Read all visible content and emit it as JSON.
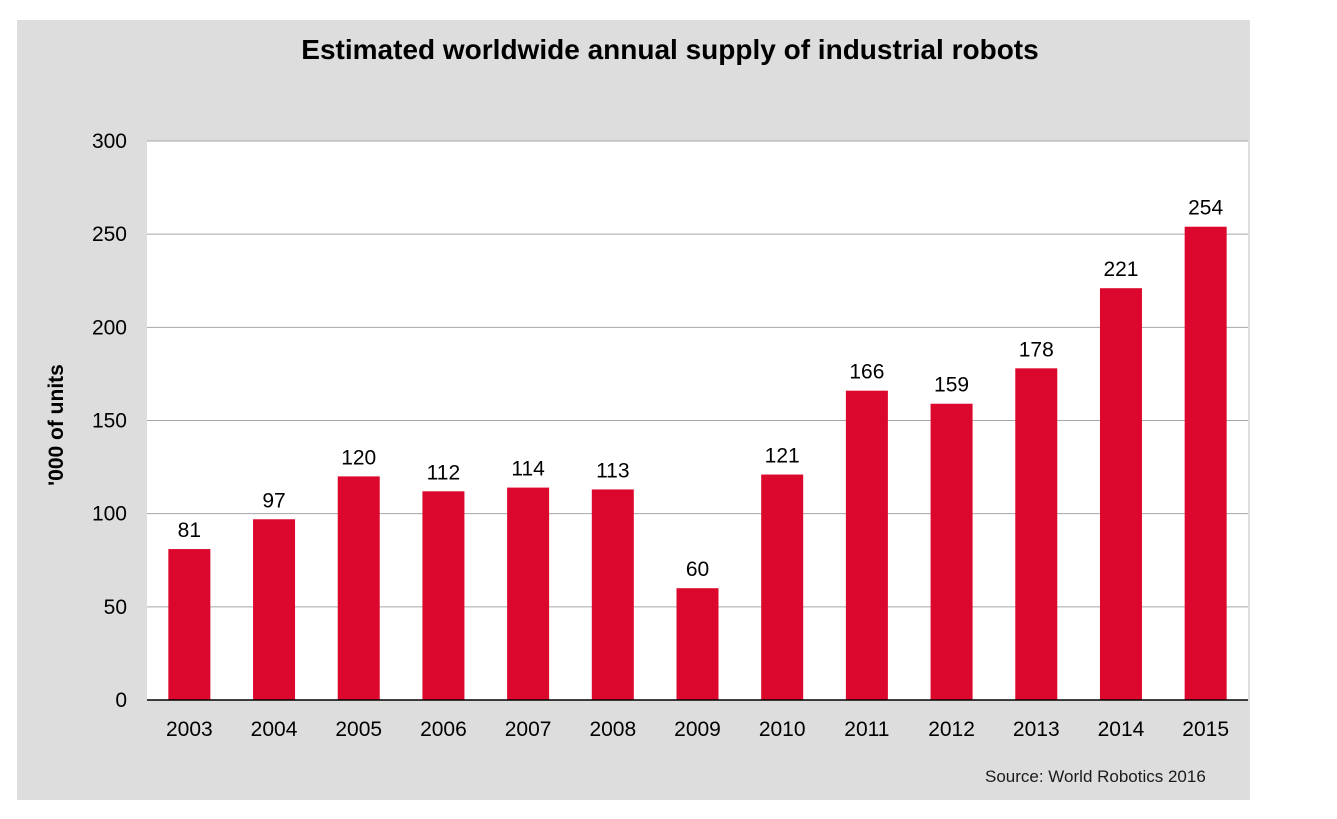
{
  "chart_data": {
    "type": "bar",
    "title": "Estimated worldwide annual supply of industrial robots",
    "xlabel": "",
    "ylabel": "'000 of units",
    "categories": [
      "2003",
      "2004",
      "2005",
      "2006",
      "2007",
      "2008",
      "2009",
      "2010",
      "2011",
      "2012",
      "2013",
      "2014",
      "2015"
    ],
    "values": [
      81,
      97,
      120,
      112,
      114,
      113,
      60,
      121,
      166,
      159,
      178,
      221,
      254
    ],
    "ylim": [
      0,
      300
    ],
    "yticks": [
      0,
      50,
      100,
      150,
      200,
      250,
      300
    ],
    "grid": true,
    "data_labels": true,
    "bar_color": "#DC072C",
    "source": "Source: World Robotics 2016"
  }
}
